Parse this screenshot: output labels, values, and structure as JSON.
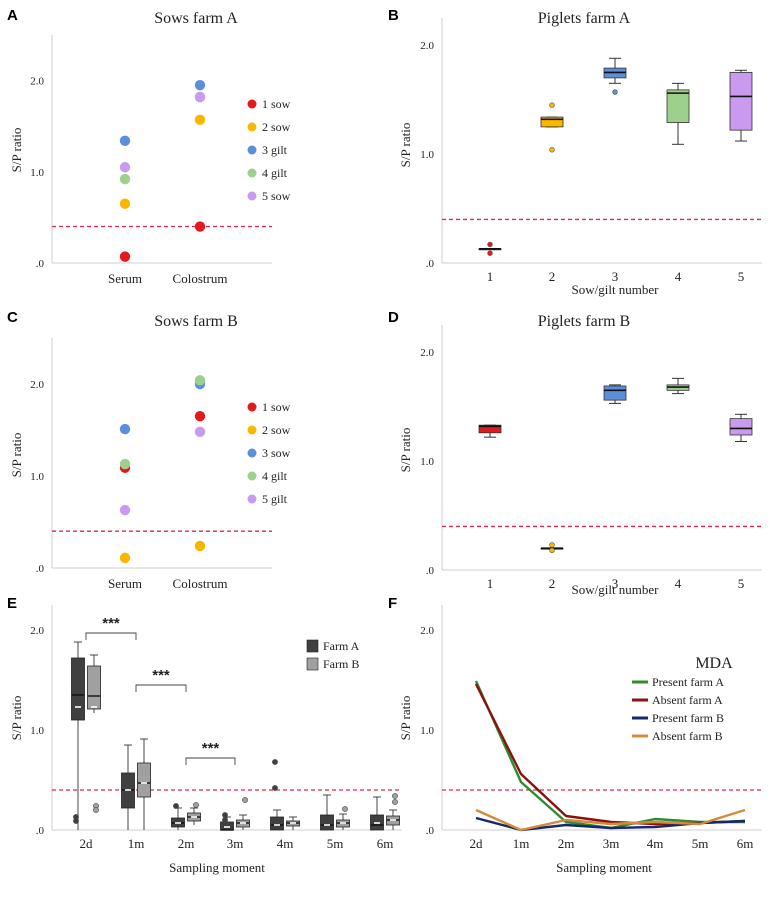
{
  "colors": {
    "sow1": "#e31a1c",
    "sow2": "#f9b700",
    "sow3": "#5b8fdc",
    "sow4": "#9cd08c",
    "sow5": "#c99af0",
    "cutoff": "#e0284a",
    "farmA": "#404040",
    "farmB": "#a0a0a0",
    "present_farm_a": "#2e8b2e",
    "absent_farm_a": "#8b1010",
    "present_farm_b": "#162a6a",
    "absent_farm_b": "#d38a3c"
  },
  "chart_data": [
    {
      "panel": "A",
      "type": "scatter",
      "title": "Sows farm A",
      "ylabel": "S/P ratio",
      "xlabel": "",
      "categories": [
        "Serum",
        "Colostrum"
      ],
      "yticks": [
        ".0",
        "1.0",
        "2.0"
      ],
      "ylim": [
        0,
        2.5
      ],
      "cutoff": 0.4,
      "legend": [
        "1 sow",
        "2 sow",
        "3 gilt",
        "4 gilt",
        "5 sow"
      ],
      "series": [
        {
          "name": "1 sow",
          "color_key": "sow1",
          "values": [
            0.07,
            0.4
          ]
        },
        {
          "name": "2 sow",
          "color_key": "sow2",
          "values": [
            0.65,
            1.57
          ]
        },
        {
          "name": "3 gilt",
          "color_key": "sow3",
          "values": [
            1.34,
            1.95
          ]
        },
        {
          "name": "4 gilt",
          "color_key": "sow4",
          "values": [
            0.92,
            1.82
          ]
        },
        {
          "name": "5 sow",
          "color_key": "sow5",
          "values": [
            1.05,
            1.82
          ]
        }
      ]
    },
    {
      "panel": "B",
      "type": "box",
      "title": "Piglets farm A",
      "ylabel": "S/P ratio",
      "xlabel": "Sow/gilt number",
      "categories": [
        "1",
        "2",
        "3",
        "4",
        "5"
      ],
      "yticks": [
        ".0",
        "1.0",
        "2.0"
      ],
      "ylim": [
        0,
        2.25
      ],
      "cutoff": 0.4,
      "boxes": [
        {
          "color_key": "sow1",
          "min": 0.13,
          "q1": 0.13,
          "median": 0.13,
          "q3": 0.13,
          "max": 0.13,
          "outliers": [
            0.17,
            0.09
          ]
        },
        {
          "color_key": "sow2",
          "min": 1.25,
          "q1": 1.25,
          "median": 1.32,
          "q3": 1.34,
          "max": 1.34,
          "outliers": [
            1.45,
            1.04
          ]
        },
        {
          "color_key": "sow3",
          "min": 1.65,
          "q1": 1.7,
          "median": 1.75,
          "q3": 1.79,
          "max": 1.88,
          "outliers": [
            1.57
          ]
        },
        {
          "color_key": "sow4",
          "min": 1.09,
          "q1": 1.29,
          "median": 1.56,
          "q3": 1.59,
          "max": 1.65,
          "outliers": []
        },
        {
          "color_key": "sow5",
          "min": 1.12,
          "q1": 1.22,
          "median": 1.53,
          "q3": 1.75,
          "max": 1.77,
          "outliers": []
        }
      ]
    },
    {
      "panel": "C",
      "type": "scatter",
      "title": "Sows farm B",
      "ylabel": "S/P ratio",
      "xlabel": "",
      "categories": [
        "Serum",
        "Colostrum"
      ],
      "yticks": [
        ".0",
        "1.0",
        "2.0"
      ],
      "ylim": [
        0,
        2.5
      ],
      "cutoff": 0.4,
      "legend": [
        "1 sow",
        "2 sow",
        "3 sow",
        "4 gilt",
        "5 gilt"
      ],
      "series": [
        {
          "name": "1 sow",
          "color_key": "sow1",
          "values": [
            1.09,
            1.65
          ]
        },
        {
          "name": "2 sow",
          "color_key": "sow2",
          "values": [
            0.11,
            0.24
          ]
        },
        {
          "name": "3 sow",
          "color_key": "sow3",
          "values": [
            1.51,
            2.0
          ]
        },
        {
          "name": "4 gilt",
          "color_key": "sow4",
          "values": [
            1.13,
            2.04
          ]
        },
        {
          "name": "5 gilt",
          "color_key": "sow5",
          "values": [
            0.63,
            1.48
          ]
        }
      ]
    },
    {
      "panel": "D",
      "type": "box",
      "title": "Piglets farm B",
      "ylabel": "S/P ratio",
      "xlabel": "Sow/gilt number",
      "categories": [
        "1",
        "2",
        "3",
        "4",
        "5"
      ],
      "yticks": [
        ".0",
        "1.0",
        "2.0"
      ],
      "ylim": [
        0,
        2.25
      ],
      "cutoff": 0.4,
      "boxes": [
        {
          "color_key": "sow1",
          "min": 1.22,
          "q1": 1.26,
          "median": 1.32,
          "q3": 1.33,
          "max": 1.33,
          "outliers": []
        },
        {
          "color_key": "sow2",
          "min": 0.2,
          "q1": 0.2,
          "median": 0.2,
          "q3": 0.2,
          "max": 0.2,
          "outliers": [
            0.23,
            0.18
          ]
        },
        {
          "color_key": "sow3",
          "min": 1.53,
          "q1": 1.56,
          "median": 1.65,
          "q3": 1.69,
          "max": 1.7,
          "outliers": []
        },
        {
          "color_key": "sow4",
          "min": 1.62,
          "q1": 1.65,
          "median": 1.68,
          "q3": 1.7,
          "max": 1.76,
          "outliers": []
        },
        {
          "color_key": "sow5",
          "min": 1.18,
          "q1": 1.24,
          "median": 1.3,
          "q3": 1.39,
          "max": 1.43,
          "outliers": []
        }
      ]
    },
    {
      "panel": "E",
      "type": "box",
      "title": "",
      "ylabel": "S/P ratio",
      "xlabel": "Sampling moment",
      "categories": [
        "2d",
        "1m",
        "2m",
        "3m",
        "4m",
        "5m",
        "6m"
      ],
      "yticks": [
        ".0",
        "1.0",
        "2.0"
      ],
      "ylim": [
        0,
        2.25
      ],
      "cutoff": 0.4,
      "legend": [
        "Farm A",
        "Farm B"
      ],
      "significance": [
        "***",
        "***",
        "***"
      ],
      "series": [
        {
          "name": "Farm A",
          "color_key": "farmA",
          "boxes": [
            {
              "min": 0.0,
              "q1": 1.1,
              "median": 1.35,
              "q3": 1.72,
              "max": 1.88,
              "mean": 1.23,
              "outliers": [
                0.13,
                0.09
              ]
            },
            {
              "min": 0.0,
              "q1": 0.22,
              "median": 0.4,
              "q3": 0.57,
              "max": 0.85,
              "mean": 0.4,
              "outliers": []
            },
            {
              "min": 0.0,
              "q1": 0.03,
              "median": 0.07,
              "q3": 0.12,
              "max": 0.22,
              "mean": 0.07,
              "outliers": [
                0.24
              ]
            },
            {
              "min": 0.0,
              "q1": 0.0,
              "median": 0.0,
              "q3": 0.08,
              "max": 0.13,
              "mean": 0.03,
              "outliers": [
                0.15,
                0.1,
                0.07
              ]
            },
            {
              "min": 0.0,
              "q1": 0.0,
              "median": 0.05,
              "q3": 0.13,
              "max": 0.2,
              "mean": 0.05,
              "outliers": [
                0.68,
                0.42
              ]
            },
            {
              "min": 0.0,
              "q1": 0.0,
              "median": 0.05,
              "q3": 0.15,
              "max": 0.35,
              "mean": 0.05,
              "outliers": []
            },
            {
              "min": 0.0,
              "q1": 0.0,
              "median": 0.05,
              "q3": 0.15,
              "max": 0.33,
              "mean": 0.07,
              "outliers": []
            }
          ]
        },
        {
          "name": "Farm B",
          "color_key": "farmB",
          "boxes": [
            {
              "min": 1.17,
              "q1": 1.21,
              "median": 1.34,
              "q3": 1.64,
              "max": 1.75,
              "mean": 1.23,
              "outliers": [
                0.24,
                0.2
              ]
            },
            {
              "min": 0.0,
              "q1": 0.33,
              "median": 0.47,
              "q3": 0.67,
              "max": 0.91,
              "mean": 0.47,
              "outliers": []
            },
            {
              "min": 0.05,
              "q1": 0.09,
              "median": 0.13,
              "q3": 0.17,
              "max": 0.22,
              "mean": 0.13,
              "outliers": [
                0.25
              ]
            },
            {
              "min": 0.0,
              "q1": 0.03,
              "median": 0.07,
              "q3": 0.1,
              "max": 0.15,
              "mean": 0.07,
              "outliers": [
                0.3
              ]
            },
            {
              "min": 0.0,
              "q1": 0.04,
              "median": 0.07,
              "q3": 0.09,
              "max": 0.13,
              "mean": 0.07,
              "outliers": []
            },
            {
              "min": 0.0,
              "q1": 0.03,
              "median": 0.07,
              "q3": 0.1,
              "max": 0.16,
              "mean": 0.07,
              "outliers": [
                0.21
              ]
            },
            {
              "min": 0.0,
              "q1": 0.05,
              "median": 0.1,
              "q3": 0.14,
              "max": 0.2,
              "mean": 0.1,
              "outliers": [
                0.34,
                0.28
              ]
            }
          ]
        }
      ]
    },
    {
      "panel": "F",
      "type": "line",
      "title": "",
      "ylabel": "S/P ratio",
      "xlabel": "Sampling moment",
      "categories": [
        "2d",
        "1m",
        "2m",
        "3m",
        "4m",
        "5m",
        "6m"
      ],
      "yticks": [
        ".0",
        "1.0",
        "2.0"
      ],
      "ylim": [
        0,
        2.25
      ],
      "cutoff": 0.4,
      "legend_title": "MDA",
      "series": [
        {
          "name": "Present farm A",
          "color_key": "present_farm_a",
          "values": [
            1.49,
            0.48,
            0.08,
            0.02,
            0.11,
            0.08,
            0.08
          ]
        },
        {
          "name": "Absent farm A",
          "color_key": "absent_farm_a",
          "values": [
            1.46,
            0.56,
            0.14,
            0.08,
            0.06,
            0.07,
            0.09
          ]
        },
        {
          "name": "Present farm B",
          "color_key": "present_farm_b",
          "values": [
            0.12,
            0.0,
            0.05,
            0.02,
            0.03,
            0.07,
            0.09
          ]
        },
        {
          "name": "Absent farm B",
          "color_key": "absent_farm_b",
          "values": [
            0.2,
            0.0,
            0.1,
            0.06,
            0.08,
            0.06,
            0.2
          ]
        }
      ]
    }
  ]
}
